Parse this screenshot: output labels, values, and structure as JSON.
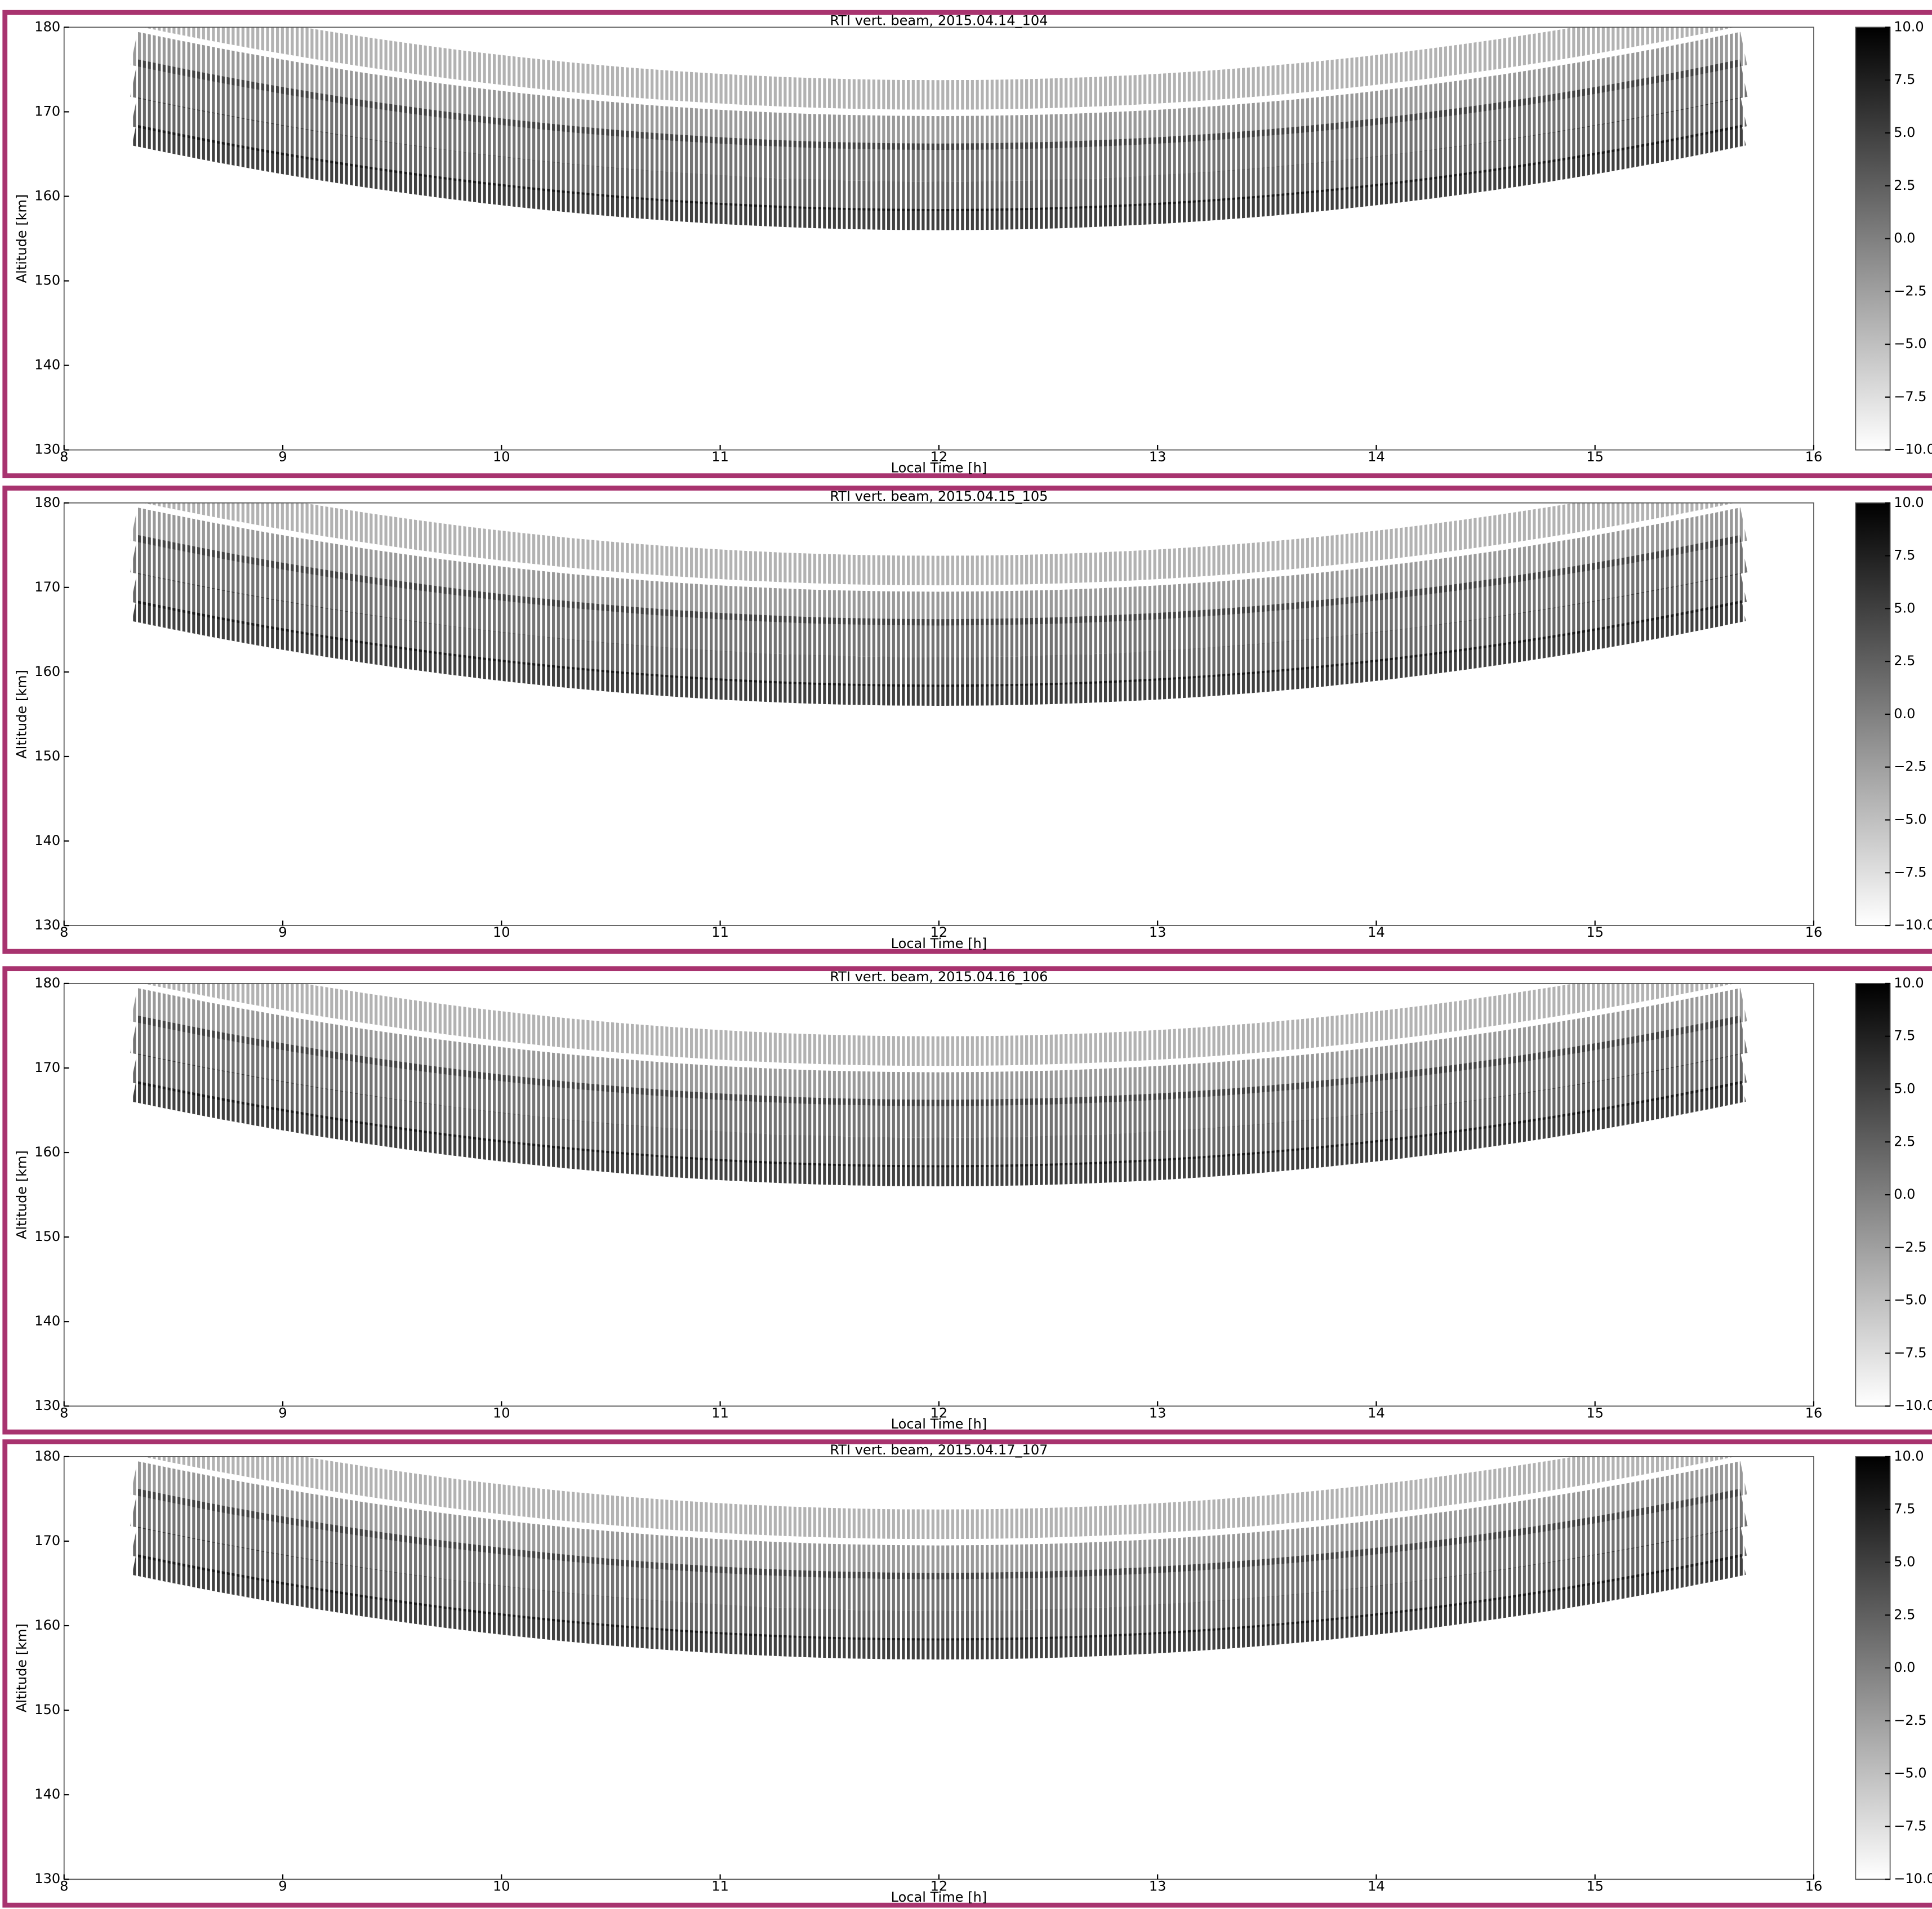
{
  "chart_data": [
    {
      "type": "heatmap",
      "title": "RTI vert. beam, 2015.04.14_104",
      "x_label": "Local Time [h]",
      "y_label": "Altitude [km]",
      "xlim": [
        8,
        16
      ],
      "xticks": [
        8,
        9,
        10,
        11,
        12,
        13,
        14,
        15,
        16
      ],
      "ylim": [
        130,
        180
      ],
      "yticks": [
        130,
        140,
        150,
        160,
        170,
        180
      ],
      "colorbar": {
        "lim": [
          -10,
          10
        ],
        "ticks": [
          {
            "value": 10,
            "label": "10.0"
          },
          {
            "value": 7.5,
            "label": "7.5"
          },
          {
            "value": 5,
            "label": "5.0"
          },
          {
            "value": 2.5,
            "label": "2.5"
          },
          {
            "value": 0,
            "label": "0.0"
          },
          {
            "value": -2.5,
            "label": "−2.5"
          },
          {
            "value": -5,
            "label": "−5.0"
          },
          {
            "value": -7.5,
            "label": "−7.5"
          },
          {
            "value": -10,
            "label": "−10.0"
          }
        ]
      },
      "colormap": "gray_r"
    },
    {
      "type": "heatmap",
      "title": "RTI vert. beam, 2015.04.15_105",
      "x_label": "Local Time [h]",
      "y_label": "Altitude [km]",
      "xlim": [
        8,
        16
      ],
      "xticks": [
        8,
        9,
        10,
        11,
        12,
        13,
        14,
        15,
        16
      ],
      "ylim": [
        130,
        180
      ],
      "yticks": [
        130,
        140,
        150,
        160,
        170,
        180
      ],
      "colorbar": {
        "lim": [
          -10,
          10
        ],
        "ticks": [
          {
            "value": 10,
            "label": "10.0"
          },
          {
            "value": 7.5,
            "label": "7.5"
          },
          {
            "value": 5,
            "label": "5.0"
          },
          {
            "value": 2.5,
            "label": "2.5"
          },
          {
            "value": 0,
            "label": "0.0"
          },
          {
            "value": -2.5,
            "label": "−2.5"
          },
          {
            "value": -5,
            "label": "−5.0"
          },
          {
            "value": -7.5,
            "label": "−7.5"
          },
          {
            "value": -10,
            "label": "−10.0"
          }
        ]
      },
      "colormap": "gray_r"
    },
    {
      "type": "heatmap",
      "title": "RTI vert. beam, 2015.04.16_106",
      "x_label": "Local Time [h]",
      "y_label": "Altitude [km]",
      "xlim": [
        8,
        16
      ],
      "xticks": [
        8,
        9,
        10,
        11,
        12,
        13,
        14,
        15,
        16
      ],
      "ylim": [
        130,
        180
      ],
      "yticks": [
        130,
        140,
        150,
        160,
        170,
        180
      ],
      "colorbar": {
        "lim": [
          -10,
          10
        ],
        "ticks": [
          {
            "value": 10,
            "label": "10.0"
          },
          {
            "value": 7.5,
            "label": "7.5"
          },
          {
            "value": 5,
            "label": "5.0"
          },
          {
            "value": 2.5,
            "label": "2.5"
          },
          {
            "value": 0,
            "label": "0.0"
          },
          {
            "value": -2.5,
            "label": "−2.5"
          },
          {
            "value": -5,
            "label": "−5.0"
          },
          {
            "value": -7.5,
            "label": "−7.5"
          },
          {
            "value": -10,
            "label": "−10.0"
          }
        ]
      },
      "colormap": "gray_r"
    },
    {
      "type": "heatmap",
      "title": "RTI vert. beam, 2015.04.17_107",
      "x_label": "Local Time [h]",
      "y_label": "Altitude [km]",
      "xlim": [
        8,
        16
      ],
      "xticks": [
        8,
        9,
        10,
        11,
        12,
        13,
        14,
        15,
        16
      ],
      "ylim": [
        130,
        180
      ],
      "yticks": [
        130,
        140,
        150,
        160,
        170,
        180
      ],
      "colorbar": {
        "lim": [
          -10,
          10
        ],
        "ticks": [
          {
            "value": 10,
            "label": "10.0"
          },
          {
            "value": 7.5,
            "label": "7.5"
          },
          {
            "value": 5,
            "label": "5.0"
          },
          {
            "value": 2.5,
            "label": "2.5"
          },
          {
            "value": 0,
            "label": "0.0"
          },
          {
            "value": -2.5,
            "label": "−2.5"
          },
          {
            "value": -5,
            "label": "−5.0"
          },
          {
            "value": -7.5,
            "label": "−7.5"
          },
          {
            "value": -10,
            "label": "−10.0"
          }
        ]
      },
      "colormap": "gray_r"
    }
  ]
}
